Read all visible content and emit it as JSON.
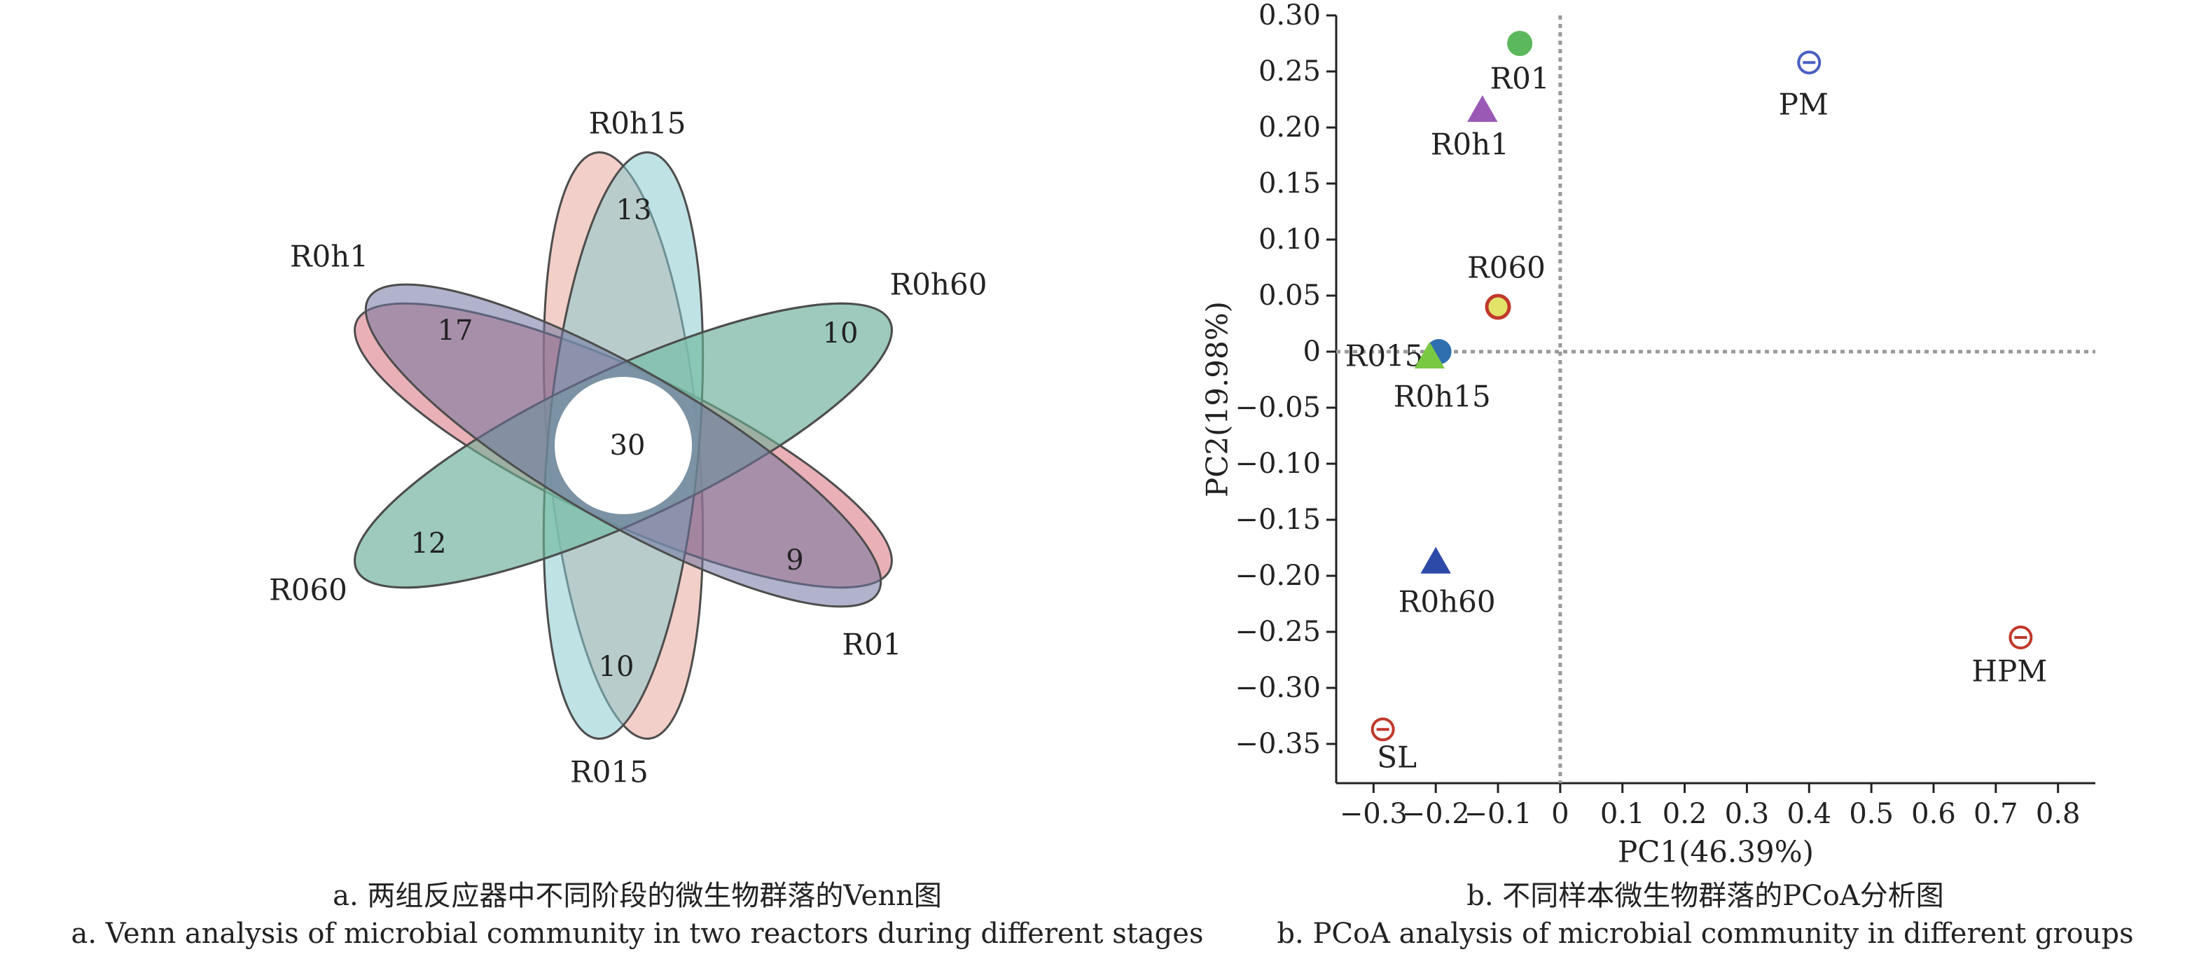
{
  "colors": {
    "axis": "#222222",
    "zero_line": "#999999",
    "text": "#222222"
  },
  "venn": {
    "center_value": "30",
    "sets": [
      {
        "name": "R0h15",
        "unique": "13",
        "fill": "#e8a79a"
      },
      {
        "name": "R0h60",
        "unique": "10",
        "fill": "#b2b6d3"
      },
      {
        "name": "R01",
        "unique": "9",
        "fill": "#d86f7b"
      },
      {
        "name": "R015",
        "unique": "10",
        "fill": "#8acbcf"
      },
      {
        "name": "R060",
        "unique": "12",
        "fill": "#6fbf9b"
      },
      {
        "name": "R0h1",
        "unique": "17",
        "fill": "#7075a1"
      }
    ]
  },
  "chart_data": {
    "type": "scatter",
    "xlabel": "PC1(46.39%)",
    "ylabel": "PC2(19.98%)",
    "xlim": [
      -0.36,
      0.86
    ],
    "ylim": [
      -0.385,
      0.3
    ],
    "x_ticks": [
      -0.3,
      -0.2,
      -0.1,
      0,
      0.1,
      0.2,
      0.3,
      0.4,
      0.5,
      0.6,
      0.7,
      0.8
    ],
    "x_tick_labels": [
      "−0.3",
      "−0.2",
      "−0.1",
      "0",
      "0.1",
      "0.2",
      "0.3",
      "0.4",
      "0.5",
      "0.6",
      "0.7",
      "0.8"
    ],
    "y_ticks": [
      0.3,
      0.25,
      0.2,
      0.15,
      0.1,
      0.05,
      0,
      -0.05,
      -0.1,
      -0.15,
      -0.2,
      -0.25,
      -0.3,
      -0.35
    ],
    "y_tick_labels": [
      "0.30",
      "0.25",
      "0.20",
      "0.15",
      "0.10",
      "0.05",
      "0",
      "−0.05",
      "−0.10",
      "−0.15",
      "−0.20",
      "−0.25",
      "−0.30",
      "−0.35"
    ],
    "zero_lines": true,
    "points": [
      {
        "label": "R01",
        "x": -0.065,
        "y": 0.275,
        "marker": "circle",
        "color": "#5cb85c"
      },
      {
        "label": "R0h1",
        "x": -0.125,
        "y": 0.215,
        "marker": "triangle",
        "color": "#9b59b6"
      },
      {
        "label": "PM",
        "x": 0.4,
        "y": 0.258,
        "marker": "circle-bar",
        "color": "#4a5fc1"
      },
      {
        "label": "R060",
        "x": -0.1,
        "y": 0.04,
        "marker": "circle-ring",
        "color": "#e3e36a",
        "ring": "#c0392b"
      },
      {
        "label": "R015",
        "x": -0.195,
        "y": 0.0,
        "marker": "circle",
        "color": "#2f6fb0"
      },
      {
        "label": "R0h15",
        "x": -0.21,
        "y": -0.005,
        "marker": "triangle",
        "color": "#7ac943"
      },
      {
        "label": "R0h60",
        "x": -0.2,
        "y": -0.188,
        "marker": "triangle",
        "color": "#2e4aa8"
      },
      {
        "label": "HPM",
        "x": 0.74,
        "y": -0.255,
        "marker": "circle-bar",
        "color": "#c0392b"
      },
      {
        "label": "SL",
        "x": -0.285,
        "y": -0.337,
        "marker": "circle-bar",
        "color": "#c0392b"
      }
    ]
  },
  "captions": {
    "a_cn": "a. 两组反应器中不同阶段的微生物群落的Venn图",
    "a_en": "a. Venn analysis of microbial community in two reactors during different stages",
    "b_cn": "b. 不同样本微生物群落的PCoA分析图",
    "b_en": "b. PCoA analysis of microbial community in different groups"
  }
}
